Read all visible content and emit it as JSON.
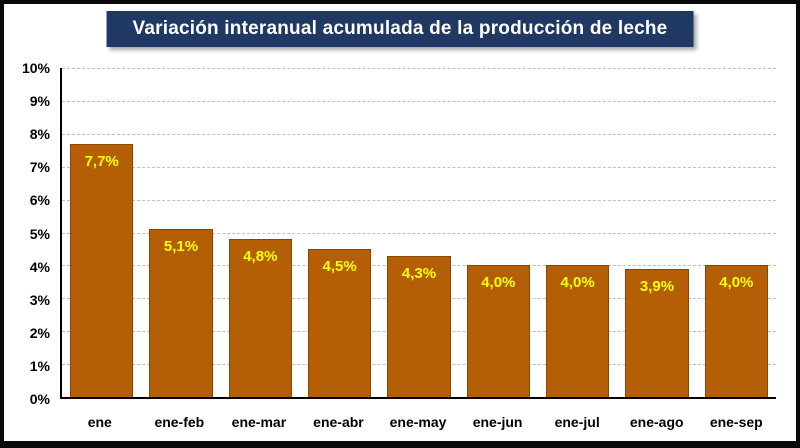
{
  "chart_data": {
    "type": "bar",
    "title": "Variación interanual acumulada de la producción de leche",
    "categories": [
      "ene",
      "ene-feb",
      "ene-mar",
      "ene-abr",
      "ene-may",
      "ene-jun",
      "ene-jul",
      "ene-ago",
      "ene-sep"
    ],
    "values": [
      7.7,
      5.1,
      4.8,
      4.5,
      4.3,
      4.0,
      4.0,
      3.9,
      4.0
    ],
    "value_labels": [
      "7,7%",
      "5,1%",
      "4,8%",
      "4,5%",
      "4,3%",
      "4,0%",
      "4,0%",
      "3,9%",
      "4,0%"
    ],
    "ylim": [
      0,
      10
    ],
    "ytick_step": 1,
    "ytick_labels": [
      "0%",
      "1%",
      "2%",
      "3%",
      "4%",
      "5%",
      "6%",
      "7%",
      "8%",
      "9%",
      "10%"
    ],
    "grid": "horizontal-dashed",
    "legend": "none",
    "colors": {
      "bar_fill": "#B45F06",
      "bar_border": "#8A4605",
      "label_color": "#FFFF00",
      "title_bg": "#1F3864",
      "title_color": "#FFFFFF",
      "gridline_color": "#BFBFBF",
      "axis_color": "#000000"
    }
  }
}
